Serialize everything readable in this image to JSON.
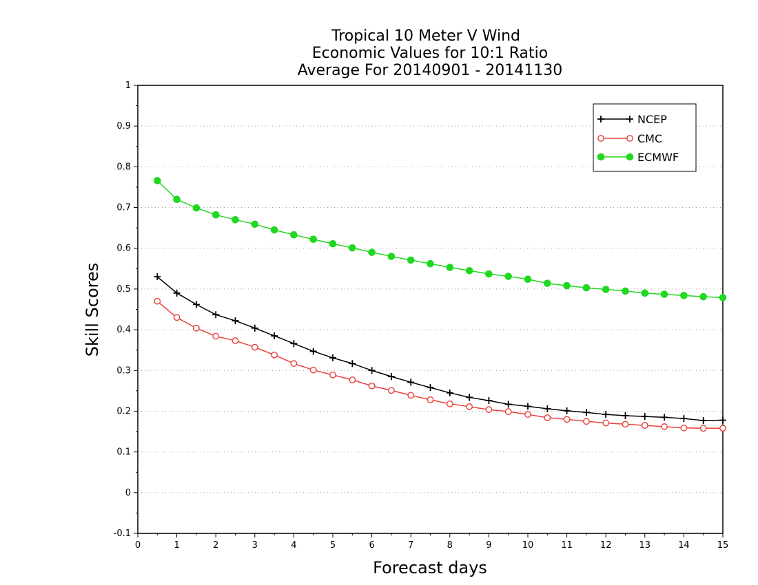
{
  "chart_data": {
    "type": "line",
    "title_lines": [
      "Tropical 10 Meter V Wind",
      "Economic Values for 10:1 Ratio",
      "Average For 20140901 - 20141130"
    ],
    "xlabel": "Forecast days",
    "ylabel": "Skill Scores",
    "xlim": [
      0,
      15
    ],
    "ylim": [
      -0.1,
      1
    ],
    "xticks": [
      "0",
      "1",
      "2",
      "3",
      "4",
      "5",
      "6",
      "7",
      "8",
      "9",
      "10",
      "11",
      "12",
      "13",
      "14",
      "15"
    ],
    "yticks": [
      "-0.1",
      "0",
      "0.1",
      "0.2",
      "0.3",
      "0.4",
      "0.5",
      "0.6",
      "0.7",
      "0.8",
      "0.9",
      "1"
    ],
    "grid": "horizontal dotted",
    "legend_position": "top-right",
    "x": [
      0.5,
      1,
      1.5,
      2,
      2.5,
      3,
      3.5,
      4,
      4.5,
      5,
      5.5,
      6,
      6.5,
      7,
      7.5,
      8,
      8.5,
      9,
      9.5,
      10,
      10.5,
      11,
      11.5,
      12,
      12.5,
      13,
      13.5,
      14,
      14.5,
      15
    ],
    "series": [
      {
        "name": "NCEP",
        "color": "#000000",
        "marker": "plus",
        "values": [
          0.53,
          0.49,
          0.462,
          0.437,
          0.422,
          0.404,
          0.385,
          0.366,
          0.347,
          0.331,
          0.317,
          0.3,
          0.285,
          0.271,
          0.258,
          0.245,
          0.234,
          0.226,
          0.217,
          0.212,
          0.206,
          0.201,
          0.197,
          0.192,
          0.189,
          0.187,
          0.185,
          0.182,
          0.177,
          0.178
        ]
      },
      {
        "name": "CMC",
        "color": "#e8403a",
        "marker": "open-circle",
        "values": [
          0.47,
          0.43,
          0.404,
          0.384,
          0.373,
          0.357,
          0.338,
          0.317,
          0.301,
          0.289,
          0.277,
          0.262,
          0.251,
          0.239,
          0.228,
          0.218,
          0.211,
          0.204,
          0.199,
          0.192,
          0.184,
          0.18,
          0.175,
          0.171,
          0.168,
          0.165,
          0.162,
          0.159,
          0.158,
          0.158
        ]
      },
      {
        "name": "ECMWF",
        "color": "#1fd81f",
        "marker": "filled-circle",
        "values": [
          0.766,
          0.72,
          0.699,
          0.682,
          0.67,
          0.659,
          0.645,
          0.633,
          0.622,
          0.611,
          0.601,
          0.59,
          0.58,
          0.571,
          0.562,
          0.553,
          0.545,
          0.537,
          0.531,
          0.524,
          0.514,
          0.508,
          0.503,
          0.499,
          0.495,
          0.49,
          0.487,
          0.484,
          0.481,
          0.479
        ]
      }
    ]
  }
}
